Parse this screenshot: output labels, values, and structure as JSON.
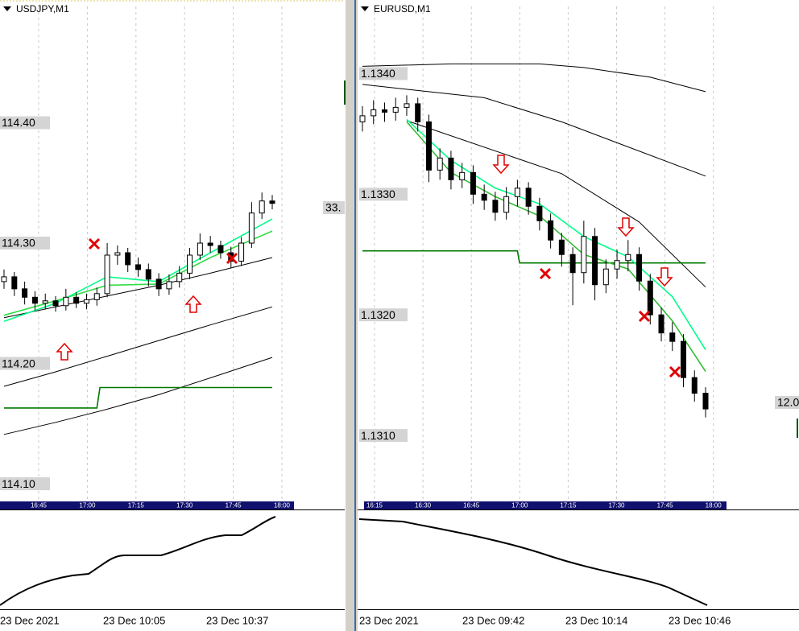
{
  "chart_data": [
    {
      "type": "candlestick",
      "title": "USDJPY,M1",
      "ylim": [
        114.086,
        114.502
      ],
      "yticks": [
        {
          "value": 114.4,
          "label": "114.40"
        },
        {
          "value": 114.3,
          "label": "114.30"
        },
        {
          "value": 114.2,
          "label": "114.20"
        },
        {
          "value": 114.1,
          "label": "114.10"
        }
      ],
      "up_color": "#ffffff",
      "down_color": "#000000",
      "grid": true,
      "candles": {
        "open": [
          114.268,
          114.272,
          114.262,
          114.255,
          114.25,
          114.252,
          114.248,
          114.255,
          114.25,
          114.253,
          114.258,
          114.29,
          114.292,
          114.282,
          114.278,
          114.27,
          114.262,
          114.268,
          114.275,
          114.29,
          114.3,
          114.298,
          114.292,
          114.285,
          114.3,
          114.325,
          114.335
        ],
        "high": [
          114.278,
          114.276,
          114.268,
          114.26,
          114.258,
          114.256,
          114.262,
          114.259,
          114.258,
          114.263,
          114.3,
          114.298,
          114.296,
          114.288,
          114.283,
          114.275,
          114.274,
          114.281,
          114.296,
          114.308,
          114.306,
          114.302,
          114.297,
          114.305,
          114.334,
          114.342,
          114.34
        ],
        "low": [
          114.262,
          114.256,
          114.249,
          114.244,
          114.245,
          114.243,
          114.244,
          114.246,
          114.245,
          114.248,
          114.255,
          114.282,
          114.276,
          114.272,
          114.264,
          114.256,
          114.257,
          114.263,
          114.27,
          114.286,
          114.292,
          114.287,
          114.279,
          114.281,
          114.296,
          114.32,
          114.328
        ],
        "close": [
          114.272,
          114.262,
          114.255,
          114.25,
          114.252,
          114.248,
          114.255,
          114.25,
          114.253,
          114.258,
          114.29,
          114.292,
          114.282,
          114.278,
          114.27,
          114.262,
          114.268,
          114.275,
          114.29,
          114.3,
          114.298,
          114.292,
          114.285,
          114.3,
          114.325,
          114.335,
          114.333
        ]
      },
      "lines": [
        {
          "color": "#000000",
          "x": [
            0,
            5,
            10,
            15,
            20,
            26
          ],
          "values": [
            114.238,
            114.247,
            114.256,
            114.265,
            114.275,
            114.288
          ]
        },
        {
          "color": "#000000",
          "x": [
            0,
            5,
            10,
            15,
            20,
            26
          ],
          "values": [
            114.181,
            114.193,
            114.206,
            114.219,
            114.232,
            114.247
          ]
        },
        {
          "color": "#000000",
          "x": [
            0,
            5,
            10,
            15,
            20,
            26
          ],
          "values": [
            114.141,
            114.151,
            114.162,
            114.174,
            114.188,
            114.205
          ]
        },
        {
          "color": "#007a00",
          "x": [
            0,
            9,
            9.3,
            26
          ],
          "values": [
            114.163,
            114.163,
            114.18,
            114.18
          ]
        },
        {
          "color": "#33dd44",
          "x": [
            0,
            5,
            10,
            15,
            20,
            26
          ],
          "values": [
            114.24,
            114.252,
            114.265,
            114.266,
            114.288,
            114.31
          ]
        },
        {
          "color": "#00ff88",
          "x": [
            0,
            5,
            10,
            15,
            20,
            26
          ],
          "values": [
            114.235,
            114.25,
            114.272,
            114.268,
            114.292,
            114.32
          ]
        }
      ],
      "time_labels": [
        "16:45",
        "17:00",
        "17:15",
        "17:30",
        "17:45",
        "18:00"
      ],
      "date_labels": [
        "23 Dec 2021",
        "23 Dec 10:05",
        "23 Dec 10:37"
      ],
      "edge_label": "33."
    },
    {
      "type": "candlestick",
      "title": "EURUSD,M1",
      "ylim": [
        1.13046,
        1.13461
      ],
      "yticks": [
        {
          "value": 1.134,
          "label": "1.1340"
        },
        {
          "value": 1.133,
          "label": "1.1330"
        },
        {
          "value": 1.132,
          "label": "1.1320"
        },
        {
          "value": 1.131,
          "label": "1.1310"
        }
      ],
      "up_color": "#ffffff",
      "down_color": "#000000",
      "grid": true,
      "candles": {
        "open": [
          1.1336,
          1.13365,
          1.1337,
          1.13368,
          1.13372,
          1.13375,
          1.1336,
          1.1332,
          1.1333,
          1.13312,
          1.13318,
          1.133,
          1.13295,
          1.13285,
          1.13298,
          1.13305,
          1.1329,
          1.13278,
          1.13262,
          1.1325,
          1.13235,
          1.13265,
          1.13225,
          1.13238,
          1.13245,
          1.1325,
          1.13228,
          1.132,
          1.13185,
          1.13178,
          1.13148,
          1.13135
        ],
        "high": [
          1.13373,
          1.13378,
          1.13376,
          1.1338,
          1.13382,
          1.1338,
          1.13366,
          1.13338,
          1.13336,
          1.13326,
          1.13324,
          1.13308,
          1.13302,
          1.13306,
          1.13312,
          1.1331,
          1.13297,
          1.13284,
          1.13268,
          1.13256,
          1.13278,
          1.13272,
          1.13246,
          1.13254,
          1.13262,
          1.13256,
          1.13234,
          1.13206,
          1.13194,
          1.13184,
          1.13154,
          1.1314
        ],
        "low": [
          1.13352,
          1.13358,
          1.1336,
          1.13361,
          1.13365,
          1.13352,
          1.1331,
          1.13312,
          1.13304,
          1.13305,
          1.13292,
          1.13287,
          1.13278,
          1.13279,
          1.1329,
          1.13283,
          1.1327,
          1.13255,
          1.1324,
          1.13208,
          1.13226,
          1.13212,
          1.13218,
          1.1323,
          1.13236,
          1.1322,
          1.13192,
          1.13178,
          1.1317,
          1.1314,
          1.13128,
          1.13115
        ],
        "close": [
          1.13365,
          1.1337,
          1.13368,
          1.13372,
          1.13375,
          1.1336,
          1.1332,
          1.1333,
          1.13312,
          1.13318,
          1.133,
          1.13295,
          1.13285,
          1.13298,
          1.13305,
          1.1329,
          1.13278,
          1.13262,
          1.1325,
          1.13235,
          1.13265,
          1.13225,
          1.13238,
          1.13245,
          1.1325,
          1.13228,
          1.132,
          1.13185,
          1.13178,
          1.13148,
          1.13135,
          1.13122
        ]
      },
      "lines": [
        {
          "color": "#000000",
          "x": [
            0,
            8,
            16,
            20,
            26,
            31
          ],
          "values": [
            1.13406,
            1.13408,
            1.13408,
            1.13405,
            1.13397,
            1.13385
          ]
        },
        {
          "color": "#000000",
          "x": [
            0,
            11,
            18,
            31
          ],
          "values": [
            1.13391,
            1.1338,
            1.1336,
            1.13315
          ]
        },
        {
          "color": "#000000",
          "x": [
            4,
            18,
            25,
            31
          ],
          "values": [
            1.13361,
            1.13317,
            1.13277,
            1.13223
          ]
        },
        {
          "color": "#007a00",
          "x": [
            0,
            14,
            14.2,
            31
          ],
          "values": [
            1.13253,
            1.13253,
            1.13243,
            1.13243
          ]
        },
        {
          "color": "#00ff88",
          "x": [
            4,
            8,
            12,
            16,
            20,
            24,
            28,
            31
          ],
          "values": [
            1.13362,
            1.13328,
            1.13305,
            1.13292,
            1.13265,
            1.13248,
            1.13215,
            1.13171
          ]
        },
        {
          "color": "#33bb33",
          "x": [
            4,
            8,
            12,
            16,
            20,
            24,
            28,
            31
          ],
          "values": [
            1.1336,
            1.13318,
            1.13298,
            1.13282,
            1.1325,
            1.13238,
            1.13195,
            1.13153
          ]
        }
      ],
      "time_labels": [
        "16:15",
        "16:30",
        "16:45",
        "17:00",
        "17:15",
        "17:30",
        "17:45",
        "18:00"
      ],
      "date_labels": [
        "23 Dec 2021",
        "23 Dec 09:42",
        "23 Dec 10:14",
        "23 Dec 10:46"
      ],
      "edge_label": "12.0"
    }
  ]
}
